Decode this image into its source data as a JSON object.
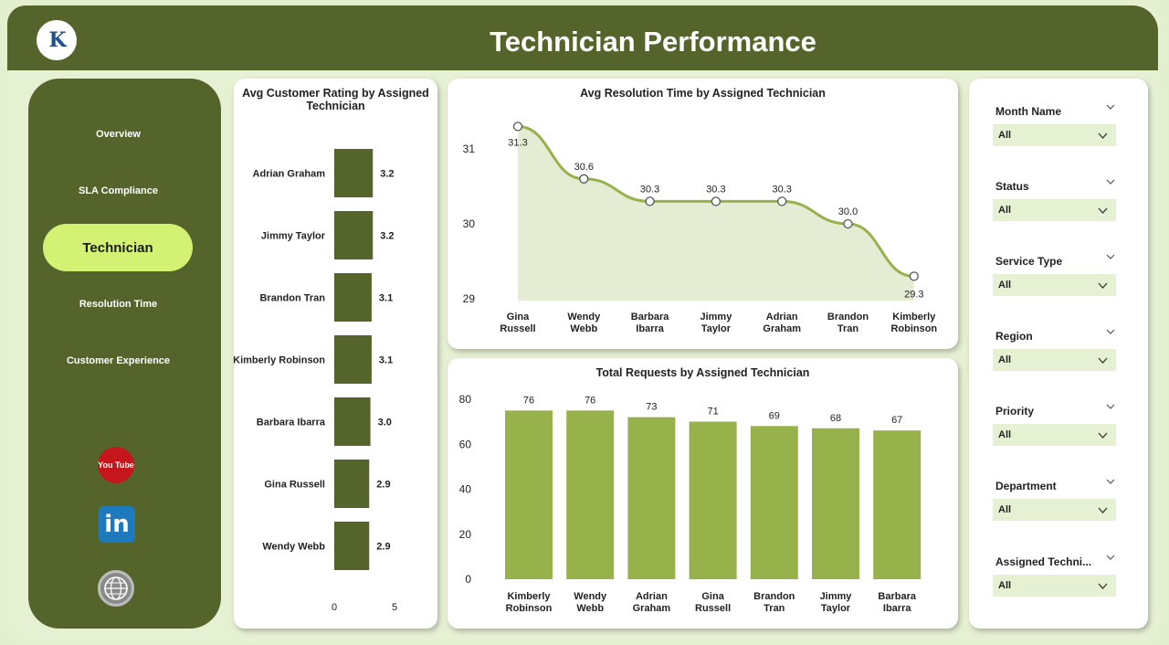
{
  "header": {
    "title": "Technician Performance"
  },
  "sidebar": {
    "items": [
      {
        "label": "Overview"
      },
      {
        "label": "SLA Compliance"
      },
      {
        "label": "Technician"
      },
      {
        "label": "Resolution Time"
      },
      {
        "label": "Customer Experience"
      }
    ],
    "active_index": 2,
    "social": {
      "youtube_text": "You Tube",
      "linkedin_text": "in"
    }
  },
  "colors": {
    "header": "#55642a",
    "active_nav": "#d3f274",
    "bar_dark": "#55642a",
    "bar_light": "#97b14b",
    "line": "#97b14b",
    "area": "#e4ecd4"
  },
  "chart_data": [
    {
      "type": "bar",
      "orientation": "horizontal",
      "title": "Avg Customer Rating by Assigned Technician",
      "categories": [
        "Adrian Graham",
        "Jimmy Taylor",
        "Brandon Tran",
        "Kimberly Robinson",
        "Barbara Ibarra",
        "Gina Russell",
        "Wendy Webb"
      ],
      "values": [
        3.2,
        3.2,
        3.1,
        3.1,
        3.0,
        2.9,
        2.9
      ],
      "x_ticks": [
        "0",
        "5"
      ],
      "xlim": [
        0,
        5
      ]
    },
    {
      "type": "line",
      "title": "Avg Resolution Time by Assigned Technician",
      "categories": [
        "Gina Russell",
        "Wendy Webb",
        "Barbara Ibarra",
        "Jimmy Taylor",
        "Adrian Graham",
        "Brandon Tran",
        "Kimberly Robinson"
      ],
      "values": [
        31.3,
        30.6,
        30.3,
        30.3,
        30.3,
        30.0,
        29.3
      ],
      "labels": [
        "31.3",
        "30.6",
        "30.3",
        "30.3",
        "30.3",
        "30.0",
        "29.3"
      ],
      "y_ticks": [
        "29",
        "30",
        "31"
      ],
      "ylim": [
        29,
        31.5
      ]
    },
    {
      "type": "bar",
      "title": "Total Requests by Assigned Technician",
      "categories": [
        "Kimberly Robinson",
        "Wendy Webb",
        "Adrian Graham",
        "Gina Russell",
        "Brandon Tran",
        "Jimmy Taylor",
        "Barbara Ibarra"
      ],
      "values": [
        76,
        76,
        73,
        71,
        69,
        68,
        67
      ],
      "y_ticks": [
        "0",
        "20",
        "40",
        "60",
        "80"
      ],
      "ylim": [
        0,
        80
      ]
    }
  ],
  "filters": [
    {
      "label": "Month Name",
      "value": "All"
    },
    {
      "label": "Status",
      "value": "All"
    },
    {
      "label": "Service Type",
      "value": "All"
    },
    {
      "label": "Region",
      "value": "All"
    },
    {
      "label": "Priority",
      "value": "All"
    },
    {
      "label": "Department",
      "value": "All"
    },
    {
      "label": "Assigned Techni...",
      "value": "All"
    }
  ]
}
